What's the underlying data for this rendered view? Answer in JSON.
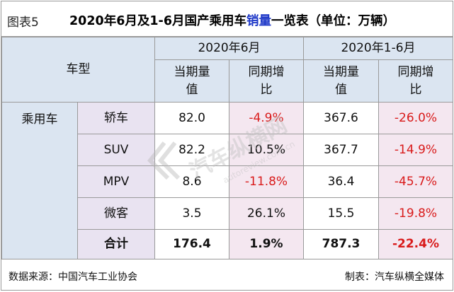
{
  "header": {
    "fig_label": "图表5",
    "title_pre": "2020年6月及1-6月国产乘用车",
    "title_hl": "销量",
    "title_post": "一览表（单位：万辆）"
  },
  "columns": {
    "corner": "车型",
    "group1": "2020年6月",
    "group2": "2020年1-6月",
    "sub": [
      "当期量值",
      "同期增比",
      "当期量值",
      "同期增比"
    ]
  },
  "category": "乘用车",
  "rows": [
    {
      "type": "轿车",
      "m_val": "82.0",
      "m_yoy": "-4.9%",
      "h_val": "367.6",
      "h_yoy": "-26.0%"
    },
    {
      "type": "SUV",
      "m_val": "82.2",
      "m_yoy": "10.5%",
      "h_val": "367.7",
      "h_yoy": "-14.9%"
    },
    {
      "type": "MPV",
      "m_val": "8.6",
      "m_yoy": "-11.8%",
      "h_val": "36.4",
      "h_yoy": "-45.7%"
    },
    {
      "type": "微客",
      "m_val": "3.5",
      "m_yoy": "26.1%",
      "h_val": "15.5",
      "h_yoy": "-19.8%"
    }
  ],
  "total": {
    "label": "合计",
    "m_val": "176.4",
    "m_yoy": "1.9%",
    "h_val": "787.3",
    "h_yoy": "-22.4%"
  },
  "footer": {
    "source": "数据来源：中国汽车工业协会",
    "maker": "制表：汽车纵横全媒体"
  },
  "watermark": {
    "text": "汽车纵横网",
    "url": "autoreview.com.cn"
  },
  "colors": {
    "header_blue": "#dbe5f1",
    "header_lavender": "#e9e3f1",
    "cell_pink": "#f4e7f0",
    "negative": "#d91b1b",
    "highlight": "#1f39c8"
  }
}
